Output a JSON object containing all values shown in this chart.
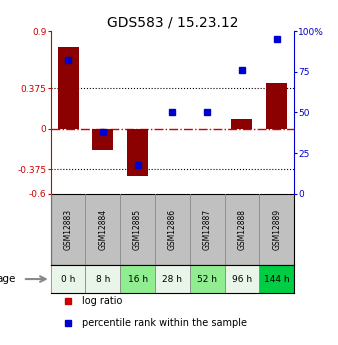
{
  "title": "GDS583 / 15.23.12",
  "samples": [
    "GSM12883",
    "GSM12884",
    "GSM12885",
    "GSM12886",
    "GSM12887",
    "GSM12888",
    "GSM12889"
  ],
  "ages": [
    "0 h",
    "8 h",
    "16 h",
    "28 h",
    "52 h",
    "96 h",
    "144 h"
  ],
  "log_ratio": [
    0.75,
    -0.2,
    -0.44,
    0.0,
    0.0,
    0.09,
    0.42
  ],
  "percentile_rank": [
    82,
    38,
    18,
    50,
    50,
    76,
    95
  ],
  "ylim_left": [
    -0.6,
    0.9
  ],
  "ylim_right": [
    0,
    100
  ],
  "yticks_left": [
    -0.6,
    -0.375,
    0,
    0.375,
    0.9
  ],
  "ytick_labels_left": [
    "-0.6",
    "-0.375",
    "0",
    "0.375",
    "0.9"
  ],
  "yticks_right": [
    0,
    25,
    50,
    75,
    100
  ],
  "ytick_labels_right": [
    "0",
    "25",
    "50",
    "75",
    "100%"
  ],
  "hlines": [
    0.375,
    -0.375
  ],
  "zero_line": 0,
  "bar_color": "#8B0000",
  "dot_color": "#0000CC",
  "age_colors": [
    "#e8f5e8",
    "#e8f5e8",
    "#90EE90",
    "#e8f5e8",
    "#90EE90",
    "#e8f5e8",
    "#00CC44"
  ],
  "sample_bg_color": "#C0C0C0",
  "legend_log_ratio_color": "#CC0000",
  "legend_percentile_color": "#0000CC",
  "bar_width": 0.6
}
